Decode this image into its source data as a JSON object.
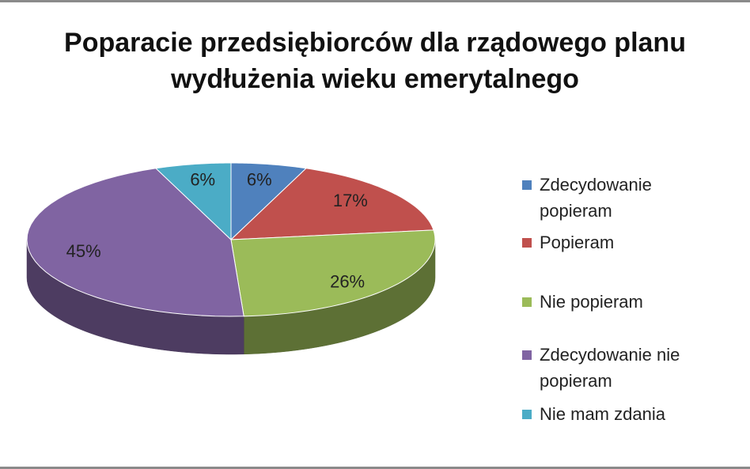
{
  "chart_data": {
    "type": "pie3d",
    "title": "Poparacie przedsiębiorców dla rządowego planu wydłużenia wieku emerytalnego",
    "categories": [
      "Zdecydowanie popieram",
      "Popieram",
      "Nie popieram",
      "Zdecydowanie nie popieram",
      "Nie mam zdania"
    ],
    "values": [
      6,
      17,
      26,
      45,
      6
    ],
    "value_labels": [
      "6%",
      "17%",
      "26%",
      "45%",
      "6%"
    ],
    "colors": [
      "#4f81bd",
      "#c0504d",
      "#9bbb59",
      "#8064a2",
      "#4bacc6"
    ],
    "legend": "right"
  }
}
